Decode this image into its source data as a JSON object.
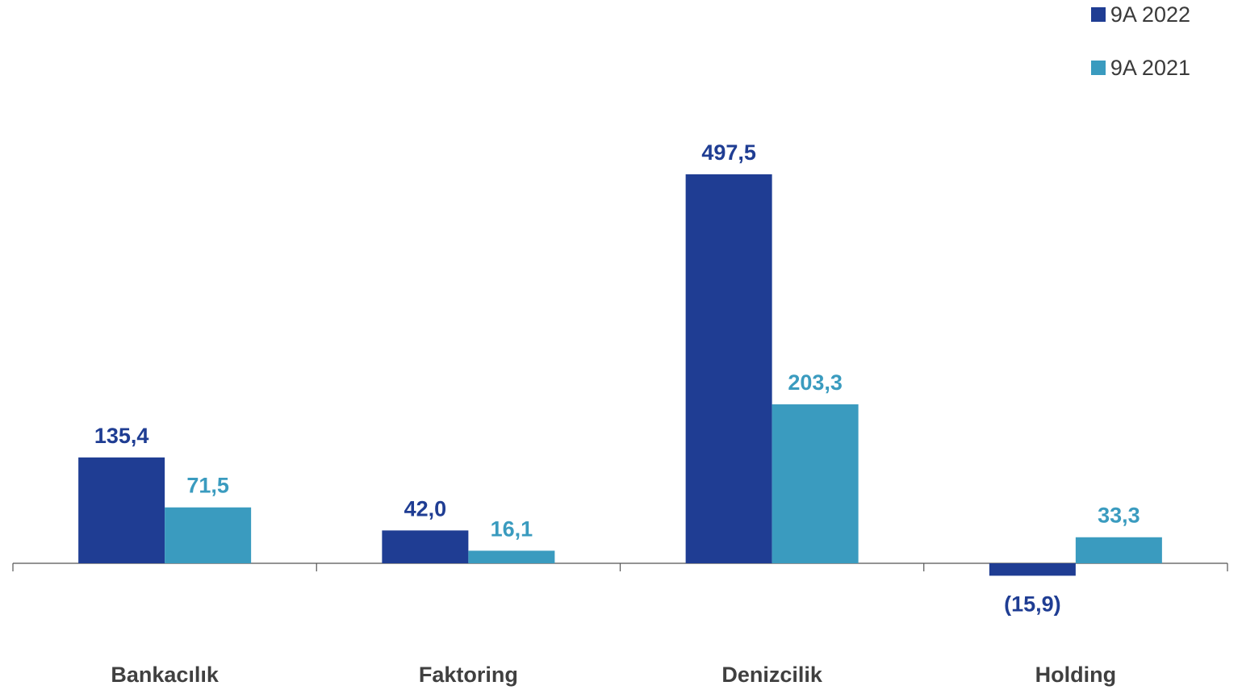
{
  "colors": {
    "series1": "#1f3d93",
    "series2": "#3a9bbf",
    "axis": "#404040"
  },
  "chart_data": {
    "type": "bar",
    "categories": [
      "Bankacılık",
      "Faktoring",
      "Denizcilik",
      "Holding"
    ],
    "series": [
      {
        "name": "9A 2022",
        "values": [
          135.4,
          42.0,
          497.5,
          -15.9
        ],
        "labels": [
          "135,4",
          "42,0",
          "497,5",
          "(15,9)"
        ]
      },
      {
        "name": "9A 2021",
        "values": [
          71.5,
          16.1,
          203.3,
          33.3
        ],
        "labels": [
          "71,5",
          "16,1",
          "203,3",
          "33,3"
        ]
      }
    ],
    "legend_position": "top-right",
    "grid": false
  }
}
